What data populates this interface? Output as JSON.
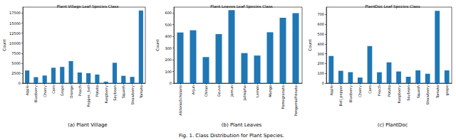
{
  "caption": "Fig. 1. Class Distribution for Plant Species.",
  "chart_data": [
    {
      "type": "bar",
      "title": "Plant Village Leaf Species Class",
      "subtitle": "(a) Plant Village",
      "y_label": "Count",
      "categories": [
        "Apple",
        "Blueberry",
        "Cherry",
        "Corn",
        "Grape",
        "Orange",
        "Peach",
        "Pepper,_bell",
        "Potato",
        "Raspberry",
        "Soybean",
        "Squash",
        "Strawberry",
        "Tomato"
      ],
      "values": [
        3171,
        1502,
        1906,
        3852,
        4062,
        5507,
        2657,
        2475,
        2152,
        371,
        5090,
        1835,
        1565,
        18160
      ],
      "color": "#1f77b4",
      "ylim": [
        0,
        19000
      ],
      "yticks": [
        0,
        2500,
        5000,
        7500,
        10000,
        12500,
        15000,
        17500
      ],
      "grid": false
    },
    {
      "type": "bar",
      "title": "Plant Leaves Leaf Species Class",
      "subtitle": "(b) Plant Leaves",
      "y_label": "Count",
      "categories": [
        "AlstoniaScholaris",
        "Arjun",
        "Chinar",
        "Gauva",
        "Jamun",
        "Jatropha",
        "Lemon",
        "Mango",
        "Pomegranate",
        "PongamiaPinnata"
      ],
      "values": [
        433,
        452,
        223,
        419,
        624,
        257,
        236,
        435,
        559,
        598
      ],
      "color": "#1f77b4",
      "ylim": [
        0,
        650
      ],
      "yticks": [
        0,
        100,
        200,
        300,
        400,
        500,
        600
      ],
      "grid": false
    },
    {
      "type": "bar",
      "title": "PlantDoc Leaf Species Class",
      "subtitle": "(c) PlantDoc",
      "y_label": "Count",
      "categories": [
        "Apple",
        "Bell_pepper",
        "Blueberry",
        "Cherry",
        "Corn",
        "Peach",
        "Potato",
        "Raspberry",
        "Soybean",
        "Squash",
        "Strawberry",
        "Tomato",
        "grape"
      ],
      "values": [
        277,
        126,
        112,
        57,
        378,
        111,
        212,
        119,
        65,
        130,
        96,
        737,
        130
      ],
      "color": "#1f77b4",
      "ylim": [
        0,
        775
      ],
      "yticks": [
        0,
        100,
        200,
        300,
        400,
        500,
        600,
        700
      ],
      "grid": false
    }
  ]
}
